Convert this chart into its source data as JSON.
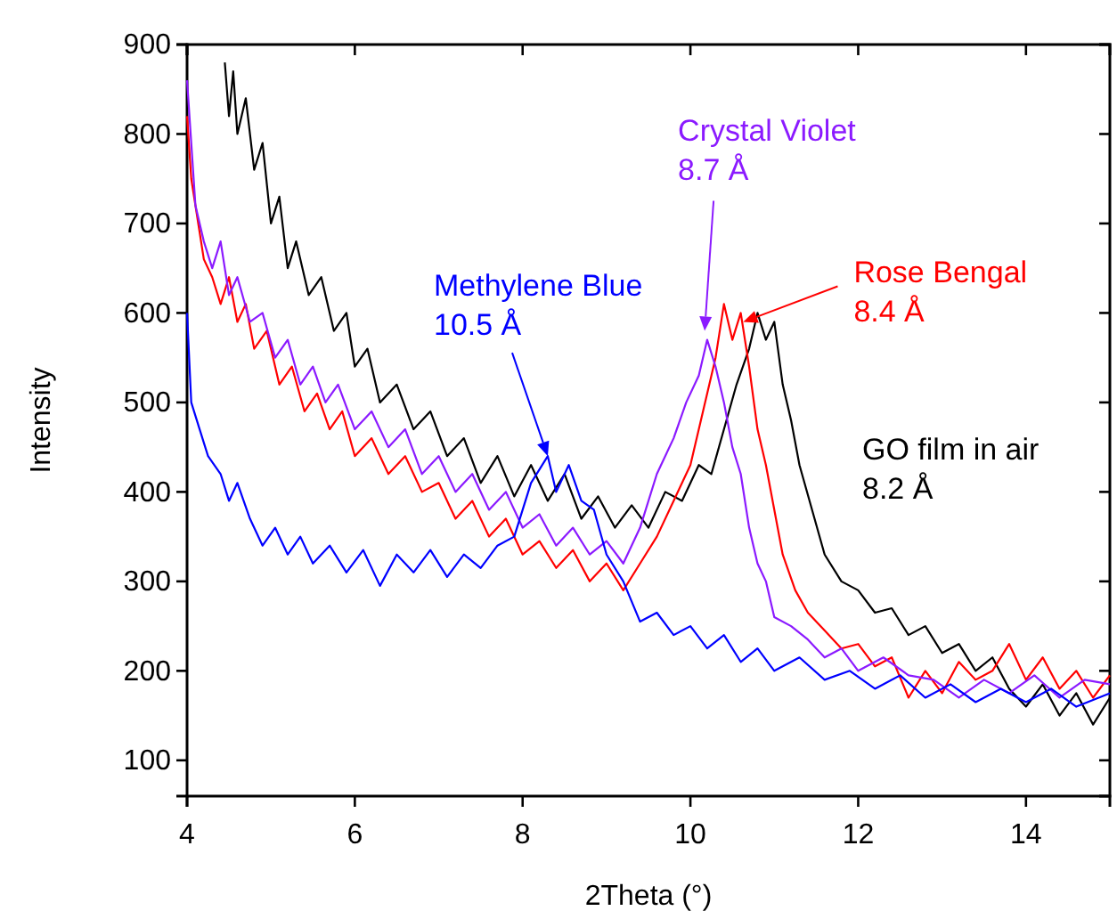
{
  "chart_data": {
    "type": "line",
    "xlabel": "2Theta (°)",
    "ylabel": "Intensity",
    "xlim": [
      4,
      15
    ],
    "ylim": [
      60,
      900
    ],
    "xticks": [
      4,
      6,
      8,
      10,
      12,
      14
    ],
    "yticks": [
      100,
      200,
      300,
      400,
      500,
      600,
      700,
      800,
      900
    ],
    "grid": false,
    "line_style": "solid",
    "marker": "none",
    "series": [
      {
        "color": "#0000ff",
        "x": [
          4.0,
          4.05,
          4.15,
          4.25,
          4.4,
          4.5,
          4.6,
          4.75,
          4.9,
          5.05,
          5.2,
          5.35,
          5.5,
          5.7,
          5.9,
          6.1,
          6.3,
          6.5,
          6.7,
          6.9,
          7.1,
          7.3,
          7.5,
          7.7,
          7.9,
          8.1,
          8.3,
          8.4,
          8.55,
          8.7,
          8.85,
          9.0,
          9.2,
          9.4,
          9.6,
          9.8,
          10.0,
          10.2,
          10.4,
          10.6,
          10.8,
          11.0,
          11.3,
          11.6,
          11.9,
          12.2,
          12.5,
          12.8,
          13.1,
          13.4,
          13.7,
          14.0,
          14.3,
          14.6,
          15.0
        ],
        "values": [
          600,
          500,
          470,
          440,
          420,
          390,
          410,
          370,
          340,
          360,
          330,
          350,
          320,
          340,
          310,
          335,
          295,
          330,
          310,
          335,
          305,
          330,
          315,
          340,
          350,
          410,
          440,
          400,
          430,
          390,
          380,
          330,
          300,
          255,
          265,
          240,
          250,
          225,
          240,
          210,
          225,
          200,
          215,
          190,
          200,
          180,
          195,
          170,
          185,
          165,
          180,
          165,
          180,
          160,
          175
        ]
      },
      {
        "color": "#8b1aff",
        "x": [
          4.0,
          4.1,
          4.2,
          4.3,
          4.4,
          4.5,
          4.6,
          4.75,
          4.9,
          5.05,
          5.2,
          5.35,
          5.5,
          5.65,
          5.8,
          6.0,
          6.2,
          6.4,
          6.6,
          6.8,
          7.0,
          7.2,
          7.4,
          7.6,
          7.8,
          8.0,
          8.2,
          8.4,
          8.6,
          8.8,
          9.0,
          9.2,
          9.4,
          9.6,
          9.8,
          9.95,
          10.1,
          10.2,
          10.3,
          10.4,
          10.5,
          10.6,
          10.7,
          10.8,
          10.9,
          11.0,
          11.2,
          11.4,
          11.6,
          11.8,
          12.0,
          12.3,
          12.6,
          12.9,
          13.2,
          13.5,
          13.8,
          14.1,
          14.4,
          14.7,
          15.0
        ],
        "values": [
          860,
          720,
          680,
          650,
          680,
          620,
          640,
          590,
          600,
          550,
          570,
          520,
          540,
          500,
          520,
          470,
          490,
          450,
          470,
          420,
          440,
          400,
          420,
          380,
          400,
          360,
          375,
          340,
          360,
          330,
          345,
          320,
          360,
          420,
          460,
          500,
          530,
          570,
          540,
          500,
          450,
          420,
          360,
          320,
          300,
          260,
          250,
          235,
          215,
          225,
          200,
          215,
          195,
          190,
          170,
          190,
          175,
          195,
          170,
          190,
          185
        ]
      },
      {
        "color": "#ff0000",
        "x": [
          4.0,
          4.05,
          4.1,
          4.2,
          4.3,
          4.4,
          4.5,
          4.6,
          4.7,
          4.8,
          4.95,
          5.1,
          5.25,
          5.4,
          5.55,
          5.7,
          5.85,
          6.0,
          6.2,
          6.4,
          6.6,
          6.8,
          7.0,
          7.2,
          7.4,
          7.6,
          7.8,
          8.0,
          8.2,
          8.4,
          8.6,
          8.8,
          9.0,
          9.2,
          9.4,
          9.6,
          9.8,
          10.0,
          10.15,
          10.3,
          10.4,
          10.5,
          10.6,
          10.7,
          10.8,
          10.9,
          11.0,
          11.1,
          11.25,
          11.4,
          11.6,
          11.8,
          12.0,
          12.2,
          12.4,
          12.6,
          12.8,
          13.0,
          13.2,
          13.4,
          13.6,
          13.8,
          14.0,
          14.2,
          14.4,
          14.6,
          14.8,
          15.0
        ],
        "values": [
          820,
          750,
          720,
          660,
          640,
          610,
          640,
          590,
          610,
          560,
          580,
          520,
          540,
          490,
          510,
          470,
          490,
          440,
          460,
          420,
          440,
          400,
          410,
          370,
          390,
          350,
          370,
          330,
          345,
          315,
          335,
          300,
          320,
          290,
          320,
          350,
          390,
          430,
          490,
          550,
          610,
          570,
          600,
          540,
          470,
          430,
          380,
          330,
          290,
          265,
          245,
          225,
          230,
          205,
          215,
          170,
          200,
          175,
          210,
          190,
          200,
          230,
          190,
          215,
          180,
          200,
          170,
          195
        ]
      },
      {
        "color": "#000000",
        "x": [
          4.45,
          4.5,
          4.55,
          4.6,
          4.7,
          4.8,
          4.9,
          5.0,
          5.1,
          5.2,
          5.3,
          5.45,
          5.6,
          5.75,
          5.9,
          6.0,
          6.15,
          6.3,
          6.5,
          6.7,
          6.9,
          7.1,
          7.3,
          7.5,
          7.7,
          7.9,
          8.1,
          8.3,
          8.5,
          8.7,
          8.9,
          9.1,
          9.3,
          9.5,
          9.7,
          9.9,
          10.1,
          10.25,
          10.4,
          10.55,
          10.7,
          10.8,
          10.9,
          11.0,
          11.1,
          11.2,
          11.3,
          11.45,
          11.6,
          11.8,
          12.0,
          12.2,
          12.4,
          12.6,
          12.8,
          13.0,
          13.2,
          13.4,
          13.6,
          13.8,
          14.0,
          14.2,
          14.4,
          14.6,
          14.8,
          15.0
        ],
        "values": [
          880,
          820,
          870,
          800,
          840,
          760,
          790,
          700,
          730,
          650,
          680,
          620,
          640,
          580,
          600,
          540,
          560,
          500,
          520,
          470,
          490,
          440,
          460,
          410,
          440,
          395,
          430,
          390,
          420,
          370,
          395,
          360,
          385,
          360,
          400,
          390,
          430,
          420,
          470,
          520,
          560,
          600,
          570,
          590,
          520,
          480,
          430,
          380,
          330,
          300,
          290,
          265,
          270,
          240,
          250,
          220,
          230,
          200,
          215,
          180,
          160,
          185,
          150,
          175,
          140,
          170
        ]
      }
    ],
    "annotations": [
      {
        "text": "Methylene Blue\n10.5 Å",
        "x": 8.3,
        "y": 440
      },
      {
        "text": "Crystal Violet\n8.7 Å",
        "x": 10.17,
        "y": 580
      },
      {
        "text": "Rose Bengal\n8.4 Å",
        "x": 10.63,
        "y": 590
      },
      "GO film in air\n8.2 Å"
    ]
  }
}
